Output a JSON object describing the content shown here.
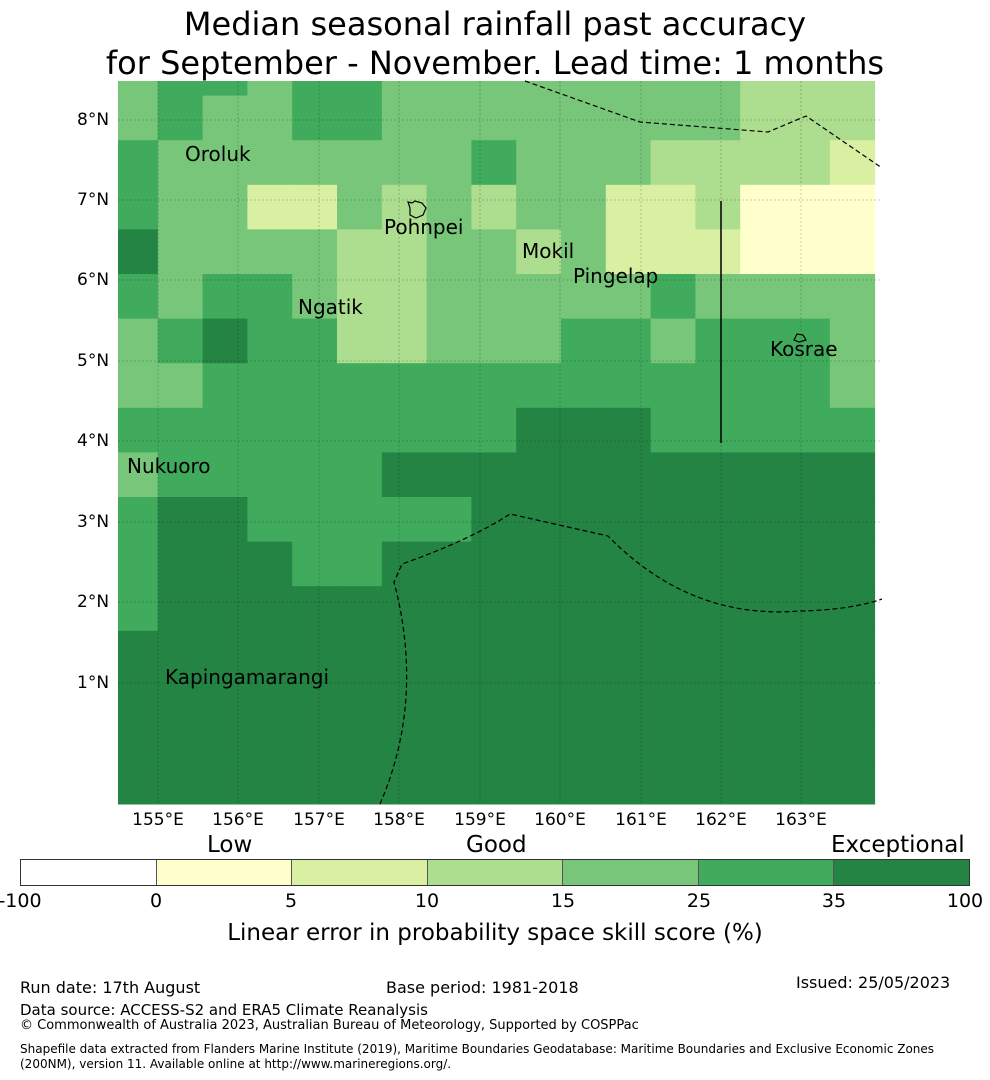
{
  "title": {
    "line1": "Median seasonal rainfall past accuracy",
    "line2": "for September - November. Lead time: 1 months"
  },
  "map": {
    "lat_labels": [
      "8°N",
      "7°N",
      "6°N",
      "5°N",
      "4°N",
      "3°N",
      "2°N",
      "1°N"
    ],
    "lon_labels": [
      "155°E",
      "156°E",
      "157°E",
      "158°E",
      "159°E",
      "160°E",
      "161°E",
      "162°E",
      "163°E"
    ],
    "places": [
      "Oroluk",
      "Pohnpei",
      "Mokil",
      "Pingelap",
      "Ngatik",
      "Kosrae",
      "Nukuoro",
      "Kapingamarangi"
    ],
    "grid": [
      [
        3,
        4,
        4,
        3,
        4,
        4,
        3,
        3,
        3,
        3,
        3,
        3,
        3,
        3,
        2,
        2,
        2
      ],
      [
        3,
        4,
        3,
        3,
        4,
        4,
        3,
        3,
        3,
        3,
        3,
        3,
        3,
        3,
        2,
        2,
        2
      ],
      [
        4,
        3,
        3,
        3,
        3,
        3,
        3,
        3,
        4,
        3,
        3,
        3,
        2,
        2,
        2,
        2,
        1
      ],
      [
        4,
        3,
        3,
        1,
        1,
        3,
        2,
        3,
        2,
        3,
        3,
        1,
        1,
        2,
        0,
        0,
        0
      ],
      [
        5,
        3,
        3,
        3,
        3,
        2,
        2,
        3,
        3,
        2,
        3,
        1,
        1,
        1,
        0,
        0,
        0
      ],
      [
        4,
        3,
        4,
        4,
        3,
        2,
        2,
        3,
        3,
        3,
        3,
        3,
        4,
        3,
        3,
        3,
        3
      ],
      [
        3,
        4,
        5,
        4,
        4,
        2,
        2,
        3,
        3,
        3,
        4,
        4,
        3,
        4,
        4,
        4,
        3
      ],
      [
        3,
        3,
        4,
        4,
        4,
        4,
        4,
        4,
        4,
        4,
        4,
        4,
        4,
        4,
        4,
        4,
        3
      ],
      [
        4,
        4,
        4,
        4,
        4,
        4,
        4,
        4,
        4,
        5,
        5,
        5,
        4,
        4,
        4,
        4,
        4
      ],
      [
        3,
        4,
        4,
        4,
        4,
        4,
        5,
        5,
        5,
        5,
        5,
        5,
        5,
        5,
        5,
        5,
        5
      ],
      [
        4,
        5,
        5,
        4,
        4,
        4,
        4,
        4,
        5,
        5,
        5,
        5,
        5,
        5,
        5,
        5,
        5
      ],
      [
        4,
        5,
        5,
        5,
        4,
        4,
        5,
        5,
        5,
        5,
        5,
        5,
        5,
        5,
        5,
        5,
        5
      ],
      [
        4,
        5,
        5,
        5,
        5,
        5,
        5,
        5,
        5,
        5,
        5,
        5,
        5,
        5,
        5,
        5,
        5
      ],
      [
        5,
        5,
        5,
        5,
        5,
        5,
        5,
        5,
        5,
        5,
        5,
        5,
        5,
        5,
        5,
        5,
        5
      ],
      [
        5,
        5,
        5,
        5,
        5,
        5,
        5,
        5,
        5,
        5,
        5,
        5,
        5,
        5,
        5,
        5,
        5
      ],
      [
        5,
        5,
        5,
        5,
        5,
        5,
        5,
        5,
        5,
        5,
        5,
        5,
        5,
        5,
        5,
        5,
        5
      ],
      [
        5,
        5,
        5,
        5,
        5,
        5,
        5,
        5,
        5,
        5,
        5,
        5,
        5,
        5,
        5,
        5,
        5
      ]
    ]
  },
  "legend": {
    "categories": [
      "Low",
      "Good",
      "Exceptional"
    ],
    "colors": [
      "#ffffff",
      "#ffffcc",
      "#d9f0a3",
      "#addd8e",
      "#78c679",
      "#41ab5d",
      "#238443"
    ],
    "ticks": [
      "-100",
      "0",
      "5",
      "10",
      "15",
      "25",
      "35",
      "100"
    ],
    "title": "Linear error in probability space skill score (%)"
  },
  "footer": {
    "run_date": "Run date: 17th August",
    "base_period": "Base period: 1981-2018",
    "issued": "Issued: 25/05/2023",
    "data_source": "Data source: ACCESS-S2 and ERA5 Climate Reanalysis",
    "copyright": "© Commonwealth of Australia 2023, Australian Bureau of Meteorology, Supported by COSPPac",
    "shapefile1": "Shapefile data extracted from Flanders Marine Institute (2019), Maritime Boundaries Geodatabase: Maritime Boundaries and Exclusive Economic Zones",
    "shapefile2": "(200NM), version 11. Available online at http://www.marineregions.org/."
  }
}
